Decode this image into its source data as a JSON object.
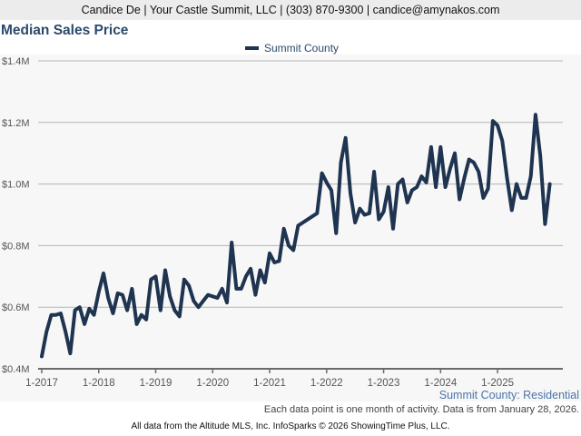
{
  "header": {
    "contact": "Candice De | Your Castle Summit, LLC | (303) 870-9300 | candice@amynakos.com"
  },
  "colors": {
    "line": "#1f3450",
    "title": "#2b4a6b",
    "grid": "#b5b5b5",
    "subtitle": "#4a74a8"
  },
  "chart_data": {
    "type": "line",
    "title": "Median Sales Price",
    "xlabel": "",
    "ylabel": "",
    "legend": {
      "position": "top-center",
      "entries": [
        "Summit County"
      ]
    },
    "ylim": [
      0.4,
      1.4
    ],
    "ytick_values": [
      0.4,
      0.6,
      0.8,
      1.0,
      1.2,
      1.4
    ],
    "ytick_labels": [
      "$0.4M",
      "$0.6M",
      "$0.8M",
      "$1.0M",
      "$1.2M",
      "$1.4M"
    ],
    "xtick_labels": [
      "1-2017",
      "1-2018",
      "1-2019",
      "1-2020",
      "1-2021",
      "1-2022",
      "1-2023",
      "1-2024",
      "1-2025"
    ],
    "x_start": "1-2017",
    "x_unit": "month",
    "grid": true,
    "series": [
      {
        "name": "Summit County",
        "values": [
          0.44,
          0.52,
          0.575,
          0.575,
          0.58,
          0.52,
          0.45,
          0.59,
          0.6,
          0.545,
          0.595,
          0.575,
          0.65,
          0.71,
          0.63,
          0.58,
          0.645,
          0.64,
          0.59,
          0.66,
          0.545,
          0.575,
          0.56,
          0.69,
          0.7,
          0.59,
          0.72,
          0.635,
          0.59,
          0.57,
          0.69,
          0.67,
          0.62,
          0.6,
          0.62,
          0.64,
          0.635,
          0.63,
          0.66,
          0.615,
          0.81,
          0.66,
          0.66,
          0.7,
          0.725,
          0.64,
          0.72,
          0.68,
          0.775,
          0.745,
          0.75,
          0.855,
          0.8,
          0.785,
          0.865,
          0.875,
          0.885,
          0.895,
          0.905,
          1.035,
          1.005,
          0.98,
          0.84,
          1.07,
          1.15,
          0.97,
          0.875,
          0.92,
          0.9,
          0.905,
          1.04,
          0.885,
          0.91,
          0.99,
          0.855,
          1.0,
          1.015,
          0.94,
          0.98,
          0.99,
          1.025,
          1.005,
          1.12,
          0.99,
          1.12,
          0.99,
          1.05,
          1.1,
          0.95,
          1.02,
          1.08,
          1.07,
          1.04,
          0.955,
          0.985,
          1.205,
          1.19,
          1.14,
          1.02,
          0.915,
          1.0,
          0.955,
          0.955,
          1.025,
          1.225,
          1.09,
          0.87,
          1.0
        ]
      }
    ]
  },
  "footer": {
    "series_label": "Summit County: Residential",
    "note": "Each data point is one month of activity. Data is from January 28, 2026.",
    "credit": "All data from the Altitude MLS, Inc. InfoSparks © 2026 ShowingTime Plus, LLC."
  }
}
